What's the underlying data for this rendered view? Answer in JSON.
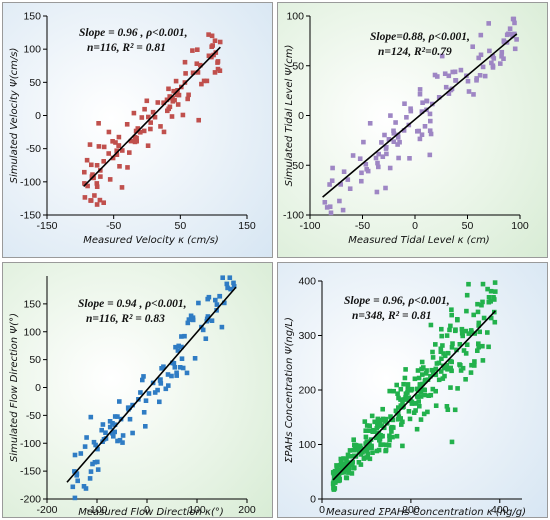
{
  "chart_data": [
    {
      "type": "scatter",
      "xlabel": "Measured Velocity κ (cm/s)",
      "ylabel": "Simulated Velocity Ψ(cm/s)",
      "annotation": [
        "Slope = 0.96 , ρ<0.001,",
        "n=116, R² = 0.81"
      ],
      "xlim": [
        -150,
        150
      ],
      "ylim": [
        -150,
        150
      ],
      "xticks": [
        -150,
        -50,
        50,
        150
      ],
      "yticks": [
        -150,
        -100,
        -50,
        0,
        50,
        100,
        150
      ],
      "n": 116,
      "slope": 0.96,
      "r2": 0.81,
      "data_range": [
        -95,
        110
      ],
      "spread": 22,
      "fit_line": {
        "x": [
          -95,
          110
        ],
        "y": [
          -107,
          103
        ]
      },
      "marker_color": "#c0504d",
      "background": "#d7e6f3"
    },
    {
      "type": "scatter",
      "xlabel": "Measured Tidal Level κ (cm)",
      "ylabel": "Simulated Tidal Level Ψ(cm)",
      "annotation": [
        "Slope=0.88, ρ<0.001,",
        "n=124, R²=0.79"
      ],
      "xlim": [
        -100,
        100
      ],
      "ylim": [
        -100,
        100
      ],
      "xticks": [
        -100,
        -50,
        0,
        50,
        100
      ],
      "yticks": [
        -100,
        -50,
        0,
        50,
        100
      ],
      "n": 124,
      "slope": 0.88,
      "r2": 0.79,
      "data_range": [
        -88,
        97
      ],
      "spread": 16,
      "fit_line": {
        "x": [
          -88,
          97
        ],
        "y": [
          -82,
          82
        ]
      },
      "marker_color": "#9e86c4",
      "background": "#d8ecd5"
    },
    {
      "type": "scatter",
      "xlabel": "Measured Flow Direction κ(°)",
      "ylabel": "Simulated Flow Direction Ψ(°)",
      "annotation": [
        "Slope = 0.94 , ρ<0.001,",
        "n=116, R² = 0.83"
      ],
      "xlim": [
        -200,
        200
      ],
      "ylim": [
        -200,
        200
      ],
      "xticks": [
        -200,
        -100,
        0,
        100,
        200
      ],
      "yticks": [
        -200,
        -150,
        -100,
        -50,
        0,
        50,
        100,
        150
      ],
      "n": 116,
      "slope": 0.94,
      "r2": 0.83,
      "data_range": [
        -160,
        175
      ],
      "spread": 28,
      "fit_line": {
        "x": [
          -160,
          178
        ],
        "y": [
          -170,
          180
        ]
      },
      "marker_color": "#2f7cc4",
      "background": "#d8ecd5"
    },
    {
      "type": "scatter",
      "xlabel": "Measured ΣPAHs Concentration κ (ng/g)",
      "ylabel": "ΣPAHs Concentration Ψ(ng/L)",
      "annotation": [
        "Slope = 0.96, ρ<0.001,",
        "n=348, R² = 0.81"
      ],
      "xlim": [
        0,
        450
      ],
      "ylim": [
        0,
        400
      ],
      "xticks": [
        0,
        200,
        400
      ],
      "yticks": [
        0,
        100,
        200,
        300,
        400
      ],
      "n": 348,
      "slope": 0.96,
      "r2": 0.81,
      "data_range": [
        25,
        390
      ],
      "spread": 38,
      "fit_line": {
        "x": [
          25,
          390
        ],
        "y": [
          35,
          345
        ]
      },
      "marker_color": "#22b14c",
      "background": "#d7e6f3"
    }
  ]
}
